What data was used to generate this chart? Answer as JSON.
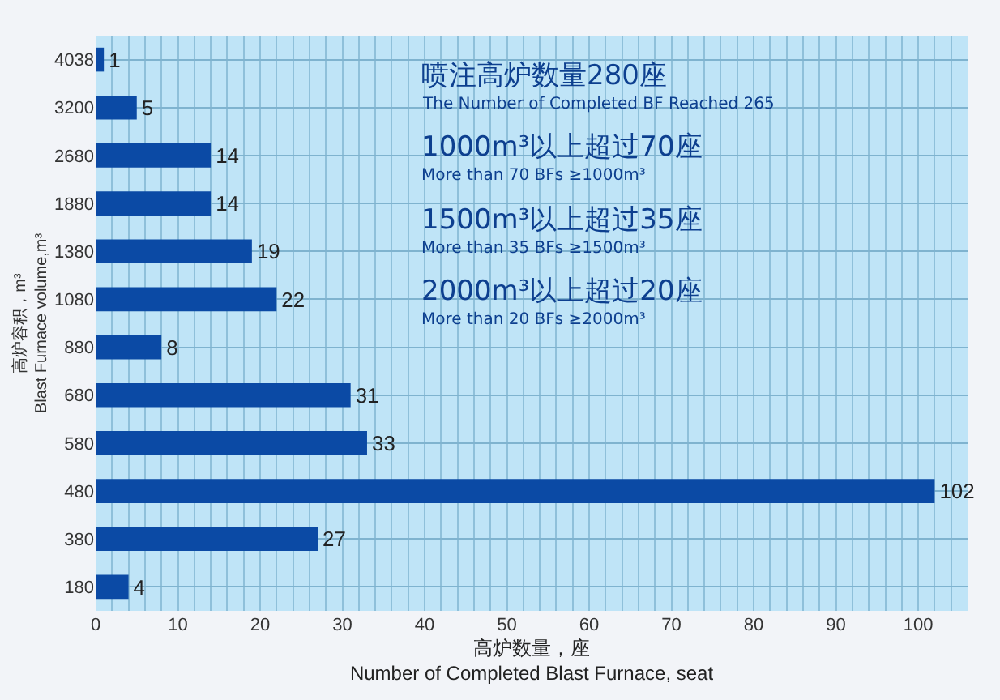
{
  "chart_data": {
    "type": "bar",
    "orientation": "horizontal",
    "xlabel": "高炉数量，座\nNumber of Completed Blast Furnace, seat",
    "ylabel": "高炉容积，m³\nBlast Furnace volume,m³",
    "categories": [
      "4038",
      "3200",
      "2680",
      "1880",
      "1380",
      "1080",
      "880",
      "680",
      "580",
      "480",
      "380",
      "180"
    ],
    "values": [
      1,
      5,
      14,
      14,
      19,
      22,
      8,
      31,
      33,
      102,
      27,
      4
    ],
    "color": "#0b4aa5",
    "xlim": [
      0,
      106
    ],
    "xticks": [
      0,
      {
        "value": 2,
        "label": null
      },
      {
        "value": 4,
        "label": null
      },
      {
        "value": 6,
        "label": null
      },
      {
        "value": 8,
        "label": null
      },
      10,
      {
        "value": 12,
        "label": null
      },
      {
        "value": 14,
        "label": null
      },
      {
        "value": 16,
        "label": null
      },
      {
        "value": 18,
        "label": null
      },
      20,
      {
        "value": 22,
        "label": null
      },
      {
        "value": 24,
        "label": null
      },
      {
        "value": 26,
        "label": null
      },
      {
        "value": 28,
        "label": null
      },
      30,
      {
        "value": 32,
        "label": null
      },
      {
        "value": 34,
        "label": null
      },
      {
        "value": 36,
        "label": null
      },
      {
        "value": 38,
        "label": null
      },
      40,
      {
        "value": 42,
        "label": null
      },
      {
        "value": 44,
        "label": null
      },
      {
        "value": 46,
        "label": null
      },
      {
        "value": 48,
        "label": null
      },
      50,
      {
        "value": 52,
        "label": null
      },
      {
        "value": 54,
        "label": null
      },
      {
        "value": 56,
        "label": null
      },
      {
        "value": 58,
        "label": null
      },
      60,
      {
        "value": 62,
        "label": null
      },
      {
        "value": 64,
        "label": null
      },
      {
        "value": 66,
        "label": null
      },
      {
        "value": 68,
        "label": null
      },
      70,
      {
        "value": 72,
        "label": null
      },
      {
        "value": 74,
        "label": null
      },
      {
        "value": 76,
        "label": null
      },
      {
        "value": 78,
        "label": null
      },
      80,
      {
        "value": 82,
        "label": null
      },
      {
        "value": 84,
        "label": null
      },
      {
        "value": 86,
        "label": null
      },
      {
        "value": 88,
        "label": null
      },
      90,
      {
        "value": 92,
        "label": null
      },
      {
        "value": 94,
        "label": null
      },
      {
        "value": 96,
        "label": null
      },
      {
        "value": 98,
        "label": null
      },
      100,
      {
        "value": 102,
        "label": null
      },
      {
        "value": 104,
        "label": null
      }
    ],
    "grid": true,
    "data_labels": true,
    "annotations": [
      "喷注高炉数量280座",
      "The Number of Completed BF Reached 265",
      "1000m³以上超过70座",
      "More than 70 BFs ≥1000m³",
      "1500m³以上超过35座",
      "More than 35 BFs ≥1500m³",
      "2000m³以上超过20座",
      "More than 20 BFs ≥2000m³"
    ]
  }
}
